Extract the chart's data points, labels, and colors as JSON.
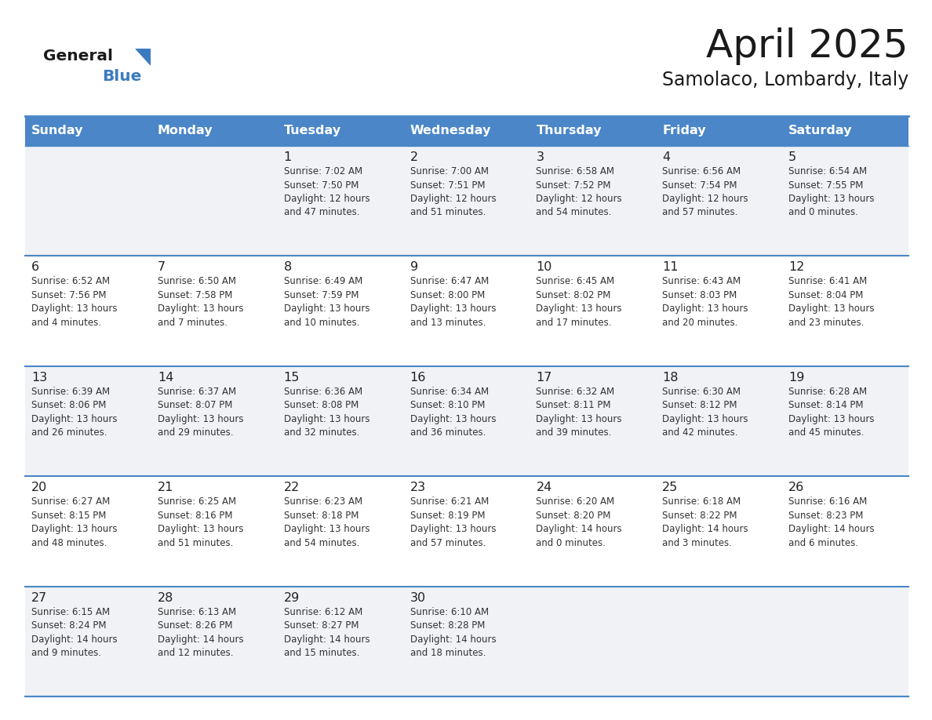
{
  "title": "April 2025",
  "subtitle": "Samolaco, Lombardy, Italy",
  "header_bg": "#4a86c8",
  "header_text_color": "#ffffff",
  "cell_bg_white": "#ffffff",
  "cell_bg_gray": "#f0f2f5",
  "border_color_blue": "#4a86c8",
  "border_color_light": "#b0c4de",
  "text_color_dark": "#222222",
  "text_color_info": "#333333",
  "day_names": [
    "Sunday",
    "Monday",
    "Tuesday",
    "Wednesday",
    "Thursday",
    "Friday",
    "Saturday"
  ],
  "weeks": [
    [
      {
        "day": "",
        "info": ""
      },
      {
        "day": "",
        "info": ""
      },
      {
        "day": "1",
        "info": "Sunrise: 7:02 AM\nSunset: 7:50 PM\nDaylight: 12 hours\nand 47 minutes."
      },
      {
        "day": "2",
        "info": "Sunrise: 7:00 AM\nSunset: 7:51 PM\nDaylight: 12 hours\nand 51 minutes."
      },
      {
        "day": "3",
        "info": "Sunrise: 6:58 AM\nSunset: 7:52 PM\nDaylight: 12 hours\nand 54 minutes."
      },
      {
        "day": "4",
        "info": "Sunrise: 6:56 AM\nSunset: 7:54 PM\nDaylight: 12 hours\nand 57 minutes."
      },
      {
        "day": "5",
        "info": "Sunrise: 6:54 AM\nSunset: 7:55 PM\nDaylight: 13 hours\nand 0 minutes."
      }
    ],
    [
      {
        "day": "6",
        "info": "Sunrise: 6:52 AM\nSunset: 7:56 PM\nDaylight: 13 hours\nand 4 minutes."
      },
      {
        "day": "7",
        "info": "Sunrise: 6:50 AM\nSunset: 7:58 PM\nDaylight: 13 hours\nand 7 minutes."
      },
      {
        "day": "8",
        "info": "Sunrise: 6:49 AM\nSunset: 7:59 PM\nDaylight: 13 hours\nand 10 minutes."
      },
      {
        "day": "9",
        "info": "Sunrise: 6:47 AM\nSunset: 8:00 PM\nDaylight: 13 hours\nand 13 minutes."
      },
      {
        "day": "10",
        "info": "Sunrise: 6:45 AM\nSunset: 8:02 PM\nDaylight: 13 hours\nand 17 minutes."
      },
      {
        "day": "11",
        "info": "Sunrise: 6:43 AM\nSunset: 8:03 PM\nDaylight: 13 hours\nand 20 minutes."
      },
      {
        "day": "12",
        "info": "Sunrise: 6:41 AM\nSunset: 8:04 PM\nDaylight: 13 hours\nand 23 minutes."
      }
    ],
    [
      {
        "day": "13",
        "info": "Sunrise: 6:39 AM\nSunset: 8:06 PM\nDaylight: 13 hours\nand 26 minutes."
      },
      {
        "day": "14",
        "info": "Sunrise: 6:37 AM\nSunset: 8:07 PM\nDaylight: 13 hours\nand 29 minutes."
      },
      {
        "day": "15",
        "info": "Sunrise: 6:36 AM\nSunset: 8:08 PM\nDaylight: 13 hours\nand 32 minutes."
      },
      {
        "day": "16",
        "info": "Sunrise: 6:34 AM\nSunset: 8:10 PM\nDaylight: 13 hours\nand 36 minutes."
      },
      {
        "day": "17",
        "info": "Sunrise: 6:32 AM\nSunset: 8:11 PM\nDaylight: 13 hours\nand 39 minutes."
      },
      {
        "day": "18",
        "info": "Sunrise: 6:30 AM\nSunset: 8:12 PM\nDaylight: 13 hours\nand 42 minutes."
      },
      {
        "day": "19",
        "info": "Sunrise: 6:28 AM\nSunset: 8:14 PM\nDaylight: 13 hours\nand 45 minutes."
      }
    ],
    [
      {
        "day": "20",
        "info": "Sunrise: 6:27 AM\nSunset: 8:15 PM\nDaylight: 13 hours\nand 48 minutes."
      },
      {
        "day": "21",
        "info": "Sunrise: 6:25 AM\nSunset: 8:16 PM\nDaylight: 13 hours\nand 51 minutes."
      },
      {
        "day": "22",
        "info": "Sunrise: 6:23 AM\nSunset: 8:18 PM\nDaylight: 13 hours\nand 54 minutes."
      },
      {
        "day": "23",
        "info": "Sunrise: 6:21 AM\nSunset: 8:19 PM\nDaylight: 13 hours\nand 57 minutes."
      },
      {
        "day": "24",
        "info": "Sunrise: 6:20 AM\nSunset: 8:20 PM\nDaylight: 14 hours\nand 0 minutes."
      },
      {
        "day": "25",
        "info": "Sunrise: 6:18 AM\nSunset: 8:22 PM\nDaylight: 14 hours\nand 3 minutes."
      },
      {
        "day": "26",
        "info": "Sunrise: 6:16 AM\nSunset: 8:23 PM\nDaylight: 14 hours\nand 6 minutes."
      }
    ],
    [
      {
        "day": "27",
        "info": "Sunrise: 6:15 AM\nSunset: 8:24 PM\nDaylight: 14 hours\nand 9 minutes."
      },
      {
        "day": "28",
        "info": "Sunrise: 6:13 AM\nSunset: 8:26 PM\nDaylight: 14 hours\nand 12 minutes."
      },
      {
        "day": "29",
        "info": "Sunrise: 6:12 AM\nSunset: 8:27 PM\nDaylight: 14 hours\nand 15 minutes."
      },
      {
        "day": "30",
        "info": "Sunrise: 6:10 AM\nSunset: 8:28 PM\nDaylight: 14 hours\nand 18 minutes."
      },
      {
        "day": "",
        "info": ""
      },
      {
        "day": "",
        "info": ""
      },
      {
        "day": "",
        "info": ""
      }
    ]
  ],
  "logo_general_color": "#1a1a1a",
  "logo_blue_color": "#3a7bbf",
  "logo_triangle_color": "#3a7bbf"
}
